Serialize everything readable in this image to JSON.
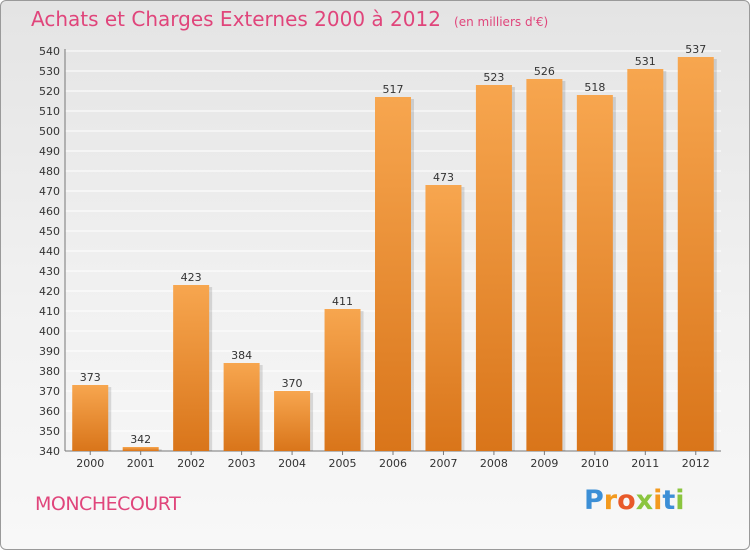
{
  "title": "Achats et Charges Externes 2000 à 2012",
  "unit": "(en milliers d'€)",
  "place": "MONCHECOURT",
  "brand": [
    "P",
    "r",
    "o",
    "x",
    "i",
    "t",
    "i"
  ],
  "colors": {
    "bar_light": "#f7a64f",
    "bar_dark": "#d9751a",
    "title": "#e0457b",
    "grid": "#ffffff",
    "brand": [
      "#3c8fd6",
      "#f39a1e",
      "#e85a2a",
      "#8bc53f",
      "#f39a1e",
      "#3c8fd6",
      "#8bc53f"
    ]
  },
  "chart_data": {
    "type": "bar",
    "title": "Achats et Charges Externes 2000 à 2012",
    "subtitle": "(en milliers d'€)",
    "xlabel": "",
    "ylabel": "",
    "categories": [
      "2000",
      "2001",
      "2002",
      "2003",
      "2004",
      "2005",
      "2006",
      "2007",
      "2008",
      "2009",
      "2010",
      "2011",
      "2012"
    ],
    "values": [
      373,
      342,
      423,
      384,
      370,
      411,
      517,
      473,
      523,
      526,
      518,
      531,
      537
    ],
    "ylim": [
      340,
      540
    ],
    "ytick_step": 10,
    "grid": true,
    "data_labels": true
  }
}
